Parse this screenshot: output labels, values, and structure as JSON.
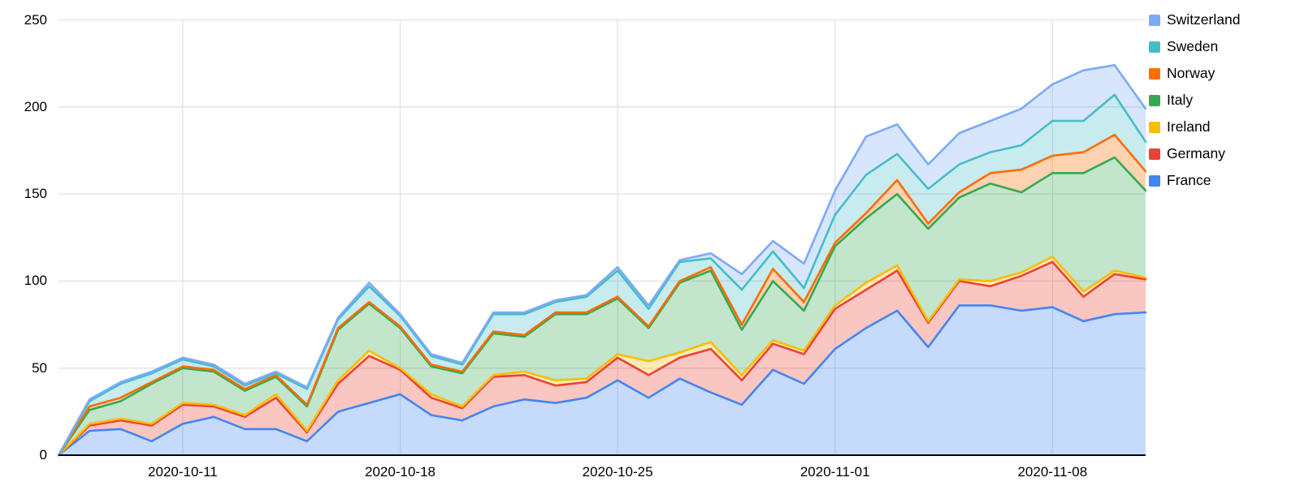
{
  "page": {
    "background": "#ffffff"
  },
  "chart_data": {
    "type": "area",
    "stacked": true,
    "title": "",
    "xlabel": "",
    "ylabel": "",
    "ylim": [
      0,
      250
    ],
    "y_ticks": [
      0,
      50,
      100,
      150,
      200,
      250
    ],
    "grid": true,
    "grid_color": "#e2e2e2",
    "axis_line_color": "#000000",
    "label_color": "#000000",
    "fill_opacity": 0.3,
    "legend_position": "right",
    "legend_order": [
      "Switzerland",
      "Sweden",
      "Norway",
      "Italy",
      "Ireland",
      "Germany",
      "France"
    ],
    "x": [
      "2020-10-07",
      "2020-10-08",
      "2020-10-09",
      "2020-10-10",
      "2020-10-11",
      "2020-10-12",
      "2020-10-13",
      "2020-10-14",
      "2020-10-15",
      "2020-10-16",
      "2020-10-17",
      "2020-10-18",
      "2020-10-19",
      "2020-10-20",
      "2020-10-21",
      "2020-10-22",
      "2020-10-23",
      "2020-10-24",
      "2020-10-25",
      "2020-10-26",
      "2020-10-27",
      "2020-10-28",
      "2020-10-29",
      "2020-10-30",
      "2020-10-31",
      "2020-11-01",
      "2020-11-02",
      "2020-11-03",
      "2020-11-04",
      "2020-11-05",
      "2020-11-06",
      "2020-11-07",
      "2020-11-08",
      "2020-11-09",
      "2020-11-10",
      "2020-11-11"
    ],
    "x_tick_labels": [
      {
        "label": "2020-10-11",
        "index": 4
      },
      {
        "label": "2020-10-18",
        "index": 11
      },
      {
        "label": "2020-10-25",
        "index": 18
      },
      {
        "label": "2020-11-01",
        "index": 25
      },
      {
        "label": "2020-11-08",
        "index": 32
      }
    ],
    "series": [
      {
        "name": "France",
        "color": "#4285f4",
        "values": [
          0,
          14,
          15,
          8,
          18,
          22,
          15,
          15,
          8,
          25,
          30,
          35,
          23,
          20,
          28,
          32,
          30,
          33,
          43,
          33,
          44,
          36,
          29,
          49,
          41,
          61,
          73,
          83,
          62,
          86,
          86,
          83,
          85,
          77,
          81,
          82
        ]
      },
      {
        "name": "Germany",
        "color": "#ea4335",
        "values": [
          0,
          3,
          5,
          9,
          11,
          6,
          7,
          18,
          5,
          16,
          27,
          14,
          10,
          7,
          17,
          14,
          10,
          9,
          13,
          13,
          12,
          25,
          14,
          15,
          17,
          23,
          22,
          23,
          14,
          14,
          11,
          20,
          26,
          14,
          23,
          19
        ]
      },
      {
        "name": "Ireland",
        "color": "#fbbc04",
        "values": [
          0,
          1,
          1,
          1,
          1,
          1,
          1,
          2,
          1,
          2,
          3,
          1,
          2,
          1,
          1,
          2,
          3,
          2,
          2,
          8,
          3,
          4,
          3,
          2,
          2,
          2,
          4,
          3,
          1,
          1,
          3,
          2,
          3,
          3,
          2,
          1
        ]
      },
      {
        "name": "Italy",
        "color": "#34a853",
        "values": [
          0,
          8,
          10,
          23,
          20,
          19,
          14,
          10,
          14,
          29,
          27,
          23,
          16,
          19,
          24,
          20,
          38,
          37,
          32,
          19,
          40,
          41,
          26,
          34,
          23,
          34,
          37,
          41,
          53,
          47,
          56,
          46,
          48,
          68,
          65,
          50
        ]
      },
      {
        "name": "Norway",
        "color": "#ff6d01",
        "values": [
          0,
          2,
          2,
          1,
          1,
          1,
          1,
          1,
          1,
          1,
          1,
          1,
          1,
          1,
          1,
          1,
          1,
          1,
          1,
          1,
          1,
          2,
          3,
          7,
          5,
          2,
          3,
          8,
          3,
          3,
          6,
          13,
          10,
          12,
          13,
          11
        ]
      },
      {
        "name": "Sweden",
        "color": "#46bdc6",
        "values": [
          0,
          3,
          8,
          5,
          4,
          2,
          2,
          1,
          9,
          5,
          9,
          6,
          5,
          4,
          10,
          12,
          6,
          9,
          15,
          10,
          11,
          5,
          20,
          10,
          8,
          16,
          22,
          15,
          20,
          16,
          12,
          14,
          20,
          18,
          23,
          17
        ]
      },
      {
        "name": "Switzerland",
        "color": "#7baaf7",
        "values": [
          0,
          1,
          1,
          1,
          1,
          1,
          1,
          1,
          1,
          1,
          2,
          1,
          1,
          1,
          1,
          1,
          1,
          1,
          2,
          2,
          1,
          3,
          9,
          6,
          14,
          14,
          22,
          17,
          14,
          18,
          18,
          21,
          21,
          29,
          17,
          19
        ]
      }
    ]
  }
}
